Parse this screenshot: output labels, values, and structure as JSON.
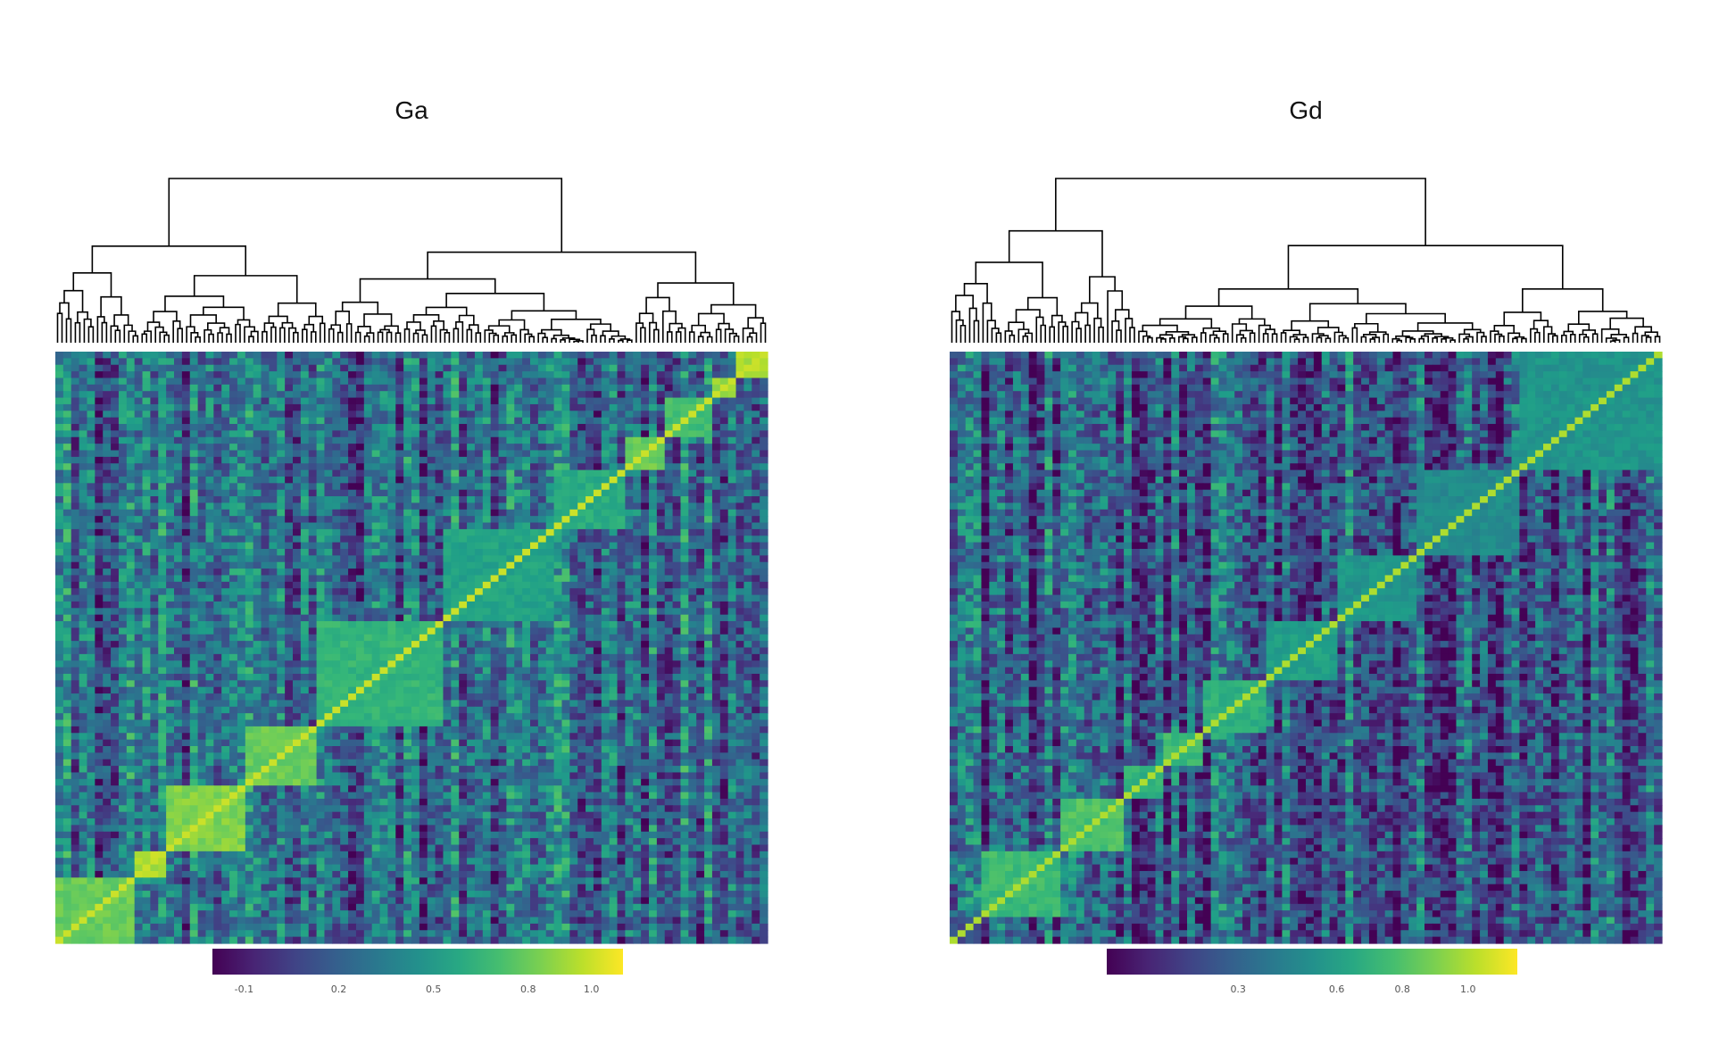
{
  "chart_data": [
    {
      "type": "heatmap",
      "title": "Ga",
      "subtitle": "",
      "xlabel": "",
      "ylabel": "",
      "dendrogram": "top",
      "diagonal_value": 1.0,
      "colorbar": {
        "ticks": [
          -0.1,
          0.2,
          0.5,
          0.8,
          1.0
        ],
        "tick_labels": [
          "-0.1",
          "0.2",
          "0.5",
          "0.8",
          "1.0"
        ],
        "range": [
          -0.2,
          1.1
        ],
        "colorscale": "viridis",
        "placement": "bottom"
      },
      "block_clusters": [
        {
          "range": [
            0.0,
            0.11
          ],
          "value": 0.8
        },
        {
          "range": [
            0.11,
            0.16
          ],
          "value": 0.95
        },
        {
          "range": [
            0.16,
            0.27
          ],
          "value": 0.85
        },
        {
          "range": [
            0.27,
            0.37
          ],
          "value": 0.8
        },
        {
          "range": [
            0.37,
            0.54
          ],
          "value": 0.65
        },
        {
          "range": [
            0.54,
            0.7
          ],
          "value": 0.55
        },
        {
          "range": [
            0.7,
            0.8
          ],
          "value": 0.6
        },
        {
          "range": [
            0.8,
            0.86
          ],
          "value": 0.8
        },
        {
          "range": [
            0.86,
            0.92
          ],
          "value": 0.7
        },
        {
          "range": [
            0.92,
            0.96
          ],
          "value": 0.9
        },
        {
          "range": [
            0.96,
            1.0
          ],
          "value": 0.95
        }
      ]
    },
    {
      "type": "heatmap",
      "title": "Gd",
      "subtitle": "",
      "xlabel": "",
      "ylabel": "",
      "dendrogram": "top",
      "diagonal_value": 1.0,
      "colorbar": {
        "ticks": [
          0.3,
          0.6,
          0.8,
          1.0
        ],
        "tick_labels": [
          "0.3",
          "0.6",
          "0.8",
          "1.0"
        ],
        "range": [
          -0.1,
          1.15
        ],
        "colorscale": "viridis",
        "placement": "bottom"
      },
      "block_clusters": [
        {
          "range": [
            0.0,
            0.05
          ],
          "value": 0.2
        },
        {
          "range": [
            0.05,
            0.16
          ],
          "value": 0.75
        },
        {
          "range": [
            0.16,
            0.25
          ],
          "value": 0.8
        },
        {
          "range": [
            0.25,
            0.3
          ],
          "value": 0.7
        },
        {
          "range": [
            0.3,
            0.36
          ],
          "value": 0.75
        },
        {
          "range": [
            0.36,
            0.44
          ],
          "value": 0.7
        },
        {
          "range": [
            0.44,
            0.55
          ],
          "value": 0.6
        },
        {
          "range": [
            0.55,
            0.66
          ],
          "value": 0.55
        },
        {
          "range": [
            0.66,
            0.8
          ],
          "value": 0.5
        },
        {
          "range": [
            0.8,
            1.0
          ],
          "value": 0.55
        }
      ]
    }
  ]
}
